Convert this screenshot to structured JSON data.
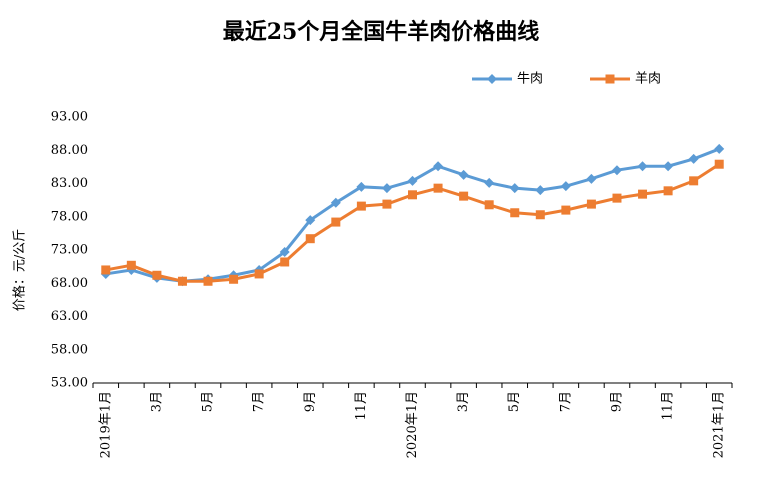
{
  "chart_data": {
    "type": "line",
    "title": "最近25个月全国牛羊肉价格曲线",
    "y_label": "价格：元/公斤",
    "categories": [
      "2019年1月",
      null,
      "3月",
      null,
      "5月",
      null,
      "7月",
      null,
      "9月",
      null,
      "11月",
      null,
      "2020年1月",
      null,
      "3月",
      null,
      "5月",
      null,
      "7月",
      null,
      "9月",
      null,
      "11月",
      null,
      "2021年1月"
    ],
    "series": [
      {
        "name": "牛肉",
        "color": "#5b9bd5",
        "marker": "diamond",
        "values": [
          69.4,
          70.0,
          68.8,
          68.3,
          68.6,
          69.2,
          70.0,
          72.7,
          77.5,
          80.1,
          82.5,
          82.3,
          83.4,
          85.6,
          84.3,
          83.1,
          82.3,
          82.0,
          82.6,
          83.7,
          85.0,
          85.6,
          85.6,
          86.7,
          88.2
        ]
      },
      {
        "name": "羊肉",
        "color": "#ed7d31",
        "marker": "square",
        "values": [
          70.0,
          70.7,
          69.2,
          68.3,
          68.3,
          68.6,
          69.4,
          71.2,
          74.7,
          77.2,
          79.6,
          79.9,
          81.3,
          82.3,
          81.1,
          79.8,
          78.6,
          78.3,
          79.0,
          79.9,
          80.8,
          81.4,
          81.9,
          83.4,
          85.9
        ]
      }
    ],
    "ylim": [
      53,
      93
    ],
    "yticks": [
      {
        "value": 53,
        "label": "53.00"
      },
      {
        "value": 58,
        "label": "58.00"
      },
      {
        "value": 63,
        "label": "63.00"
      },
      {
        "value": 68,
        "label": "68.00"
      },
      {
        "value": 73,
        "label": "73.00"
      },
      {
        "value": 78,
        "label": "78.00"
      },
      {
        "value": 83,
        "label": "83.00"
      },
      {
        "value": 88,
        "label": "88.00"
      },
      {
        "value": 93,
        "label": "93.00"
      }
    ],
    "grid": false,
    "legend": "top-right"
  }
}
